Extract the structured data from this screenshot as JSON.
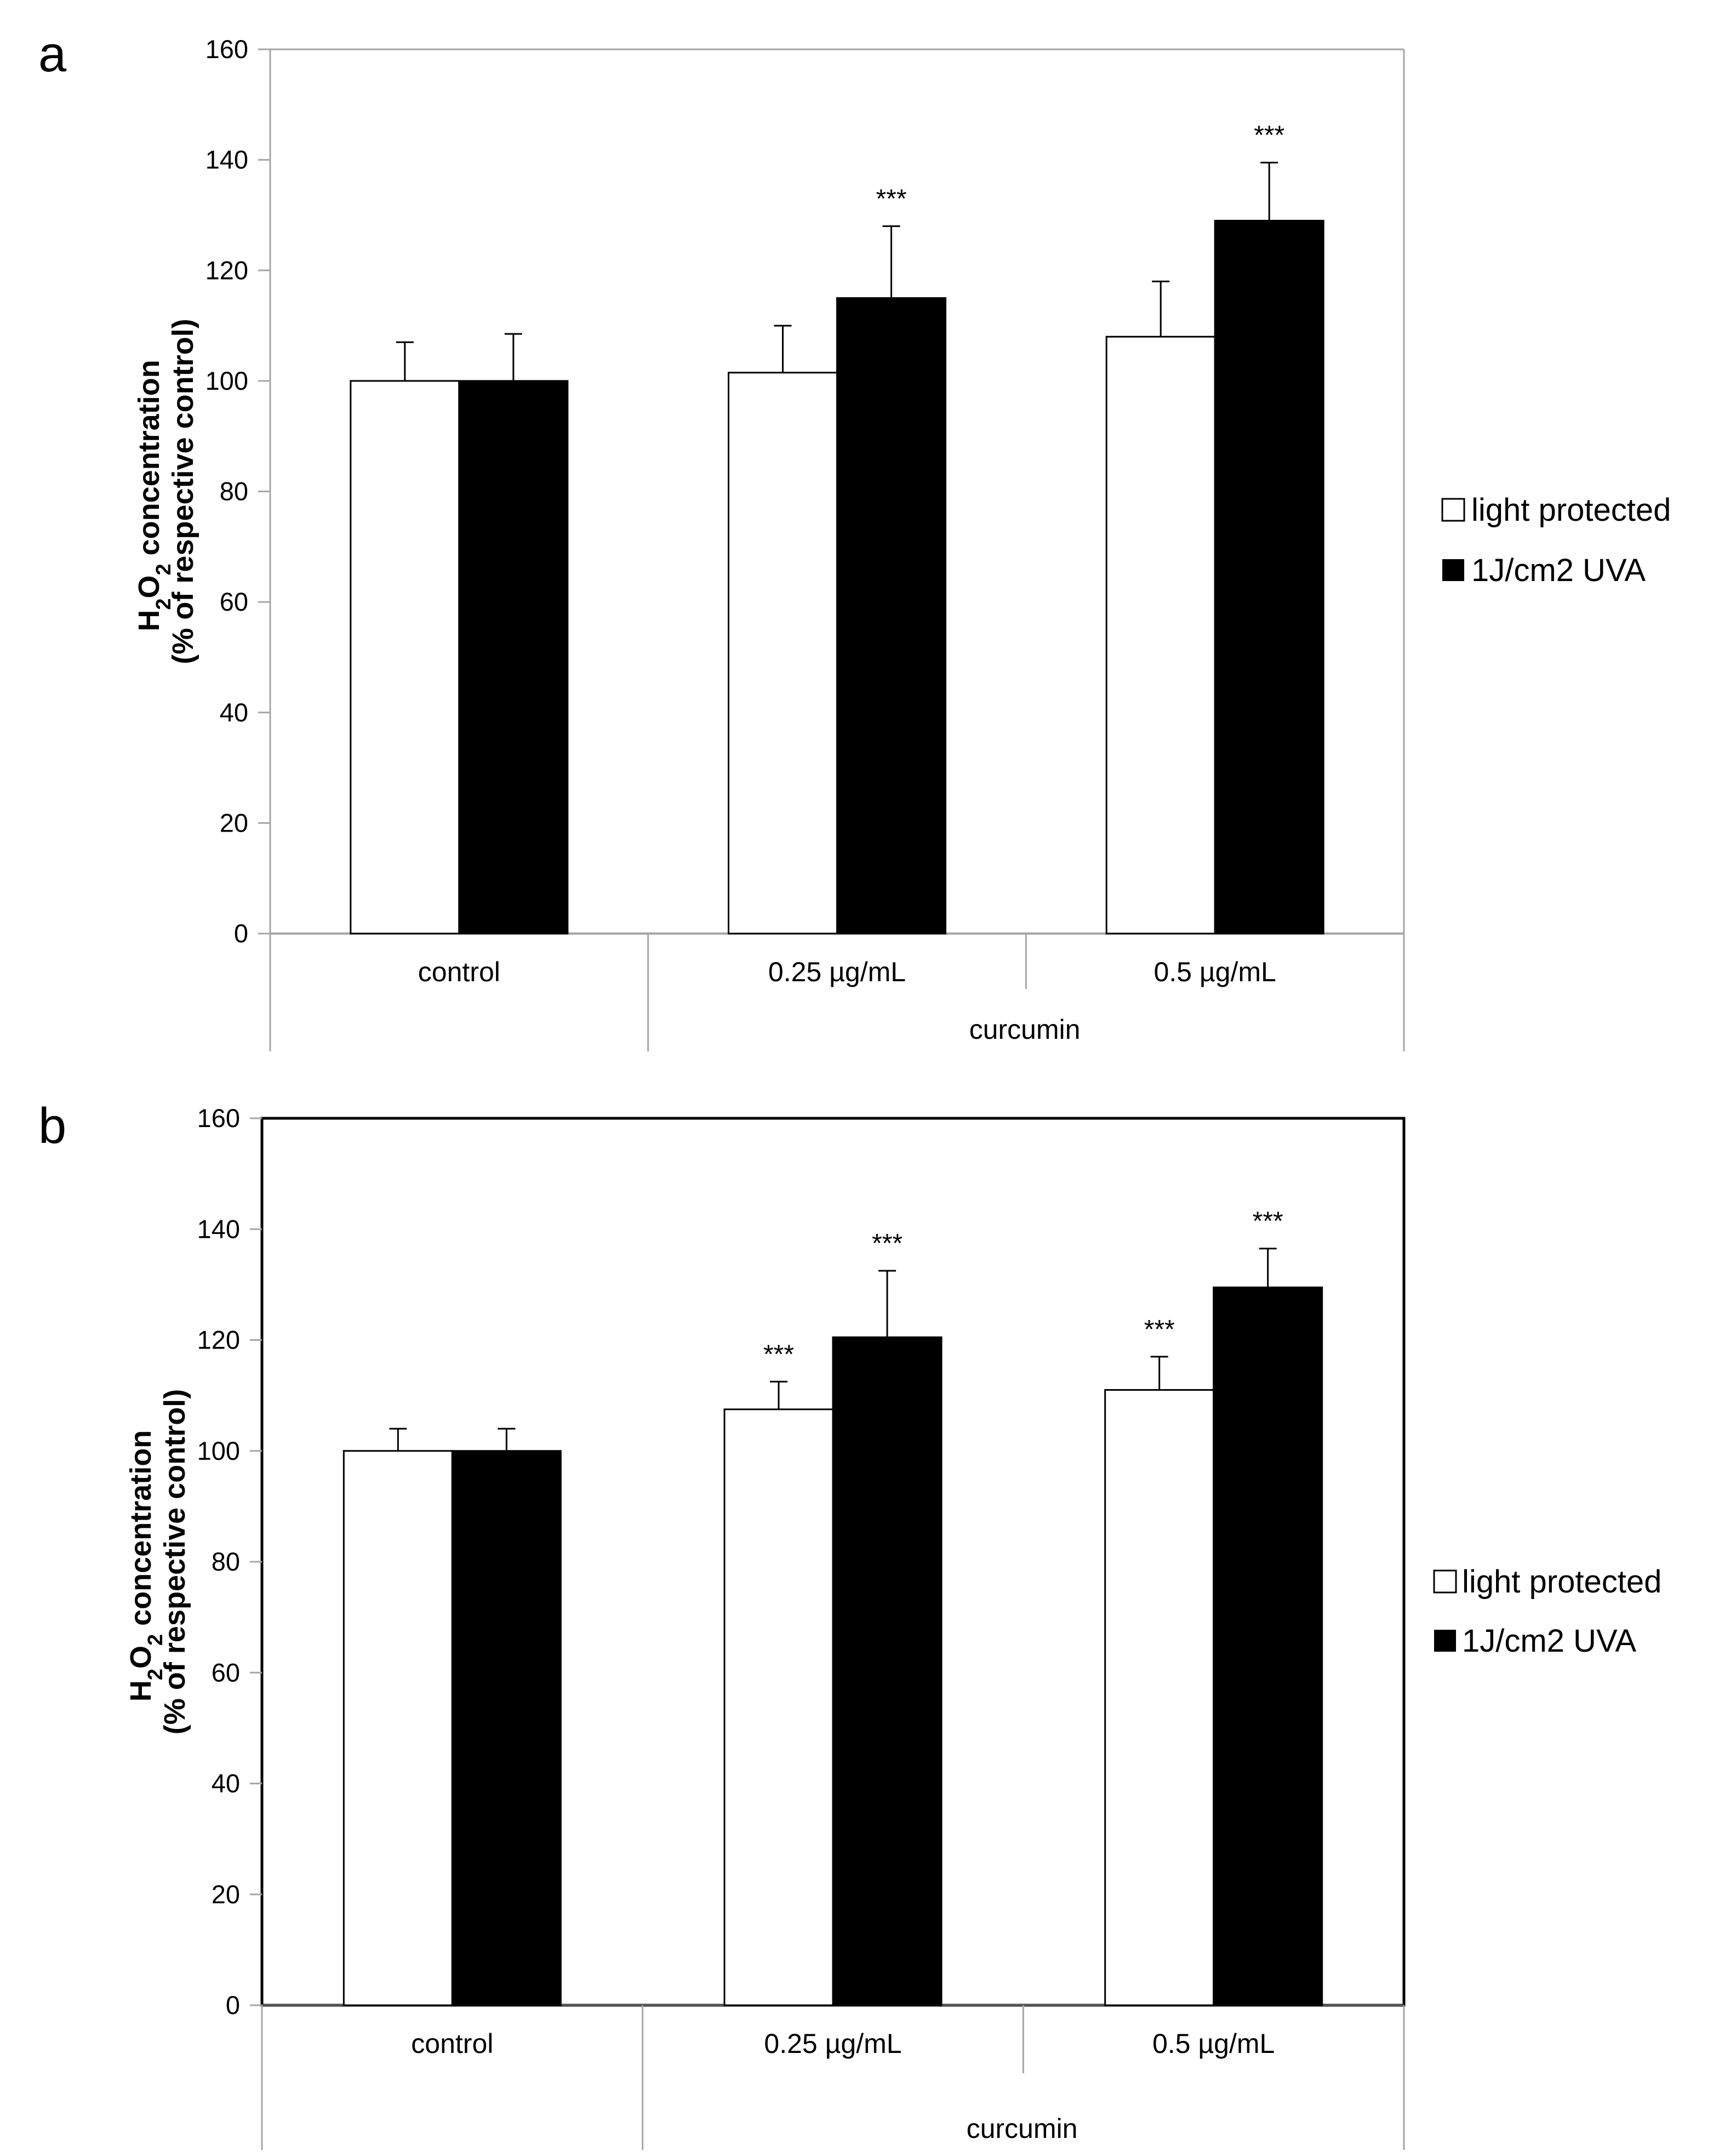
{
  "colors": {
    "light_protected": "#ffffff",
    "uva": "#000000",
    "axis": "#a6a6a6"
  },
  "chart_data": [
    {
      "panel": "a",
      "type": "bar",
      "ylabel": "H2O2 concentration (% of respective control)",
      "ylim": [
        0,
        160
      ],
      "yticks": [
        "0",
        "20",
        "40",
        "60",
        "80",
        "100",
        "120",
        "140",
        "160"
      ],
      "categories": [
        "control",
        "0.25 µg/mL",
        "0.5 µg/mL"
      ],
      "group_label": "curcumin",
      "legend": [
        "light protected",
        "1J/cm2 UVA"
      ],
      "series": [
        {
          "name": "light protected",
          "values": [
            100,
            101.5,
            108
          ],
          "errors": [
            7,
            8.5,
            10
          ],
          "sig": [
            "",
            "",
            ""
          ]
        },
        {
          "name": "1J/cm2 UVA",
          "values": [
            100,
            115,
            129
          ],
          "errors": [
            8.5,
            13,
            10.5
          ],
          "sig": [
            "",
            "***",
            "***"
          ]
        }
      ]
    },
    {
      "panel": "b",
      "type": "bar",
      "ylabel": "H2O2 concentration (% of respective control)",
      "ylim": [
        0,
        160
      ],
      "yticks": [
        "0",
        "20",
        "40",
        "60",
        "80",
        "100",
        "120",
        "140",
        "160"
      ],
      "categories": [
        "control",
        "0.25 µg/mL",
        "0.5 µg/mL"
      ],
      "group_label": "curcumin",
      "legend": [
        "light protected",
        "1J/cm2 UVA"
      ],
      "series": [
        {
          "name": "light protected",
          "values": [
            100,
            107.5,
            111
          ],
          "errors": [
            4,
            5,
            6
          ],
          "sig": [
            "",
            "***",
            "***"
          ]
        },
        {
          "name": "1J/cm2 UVA",
          "values": [
            100,
            120.5,
            129.5
          ],
          "errors": [
            4,
            12,
            7
          ],
          "sig": [
            "",
            "***",
            "***"
          ]
        }
      ]
    }
  ]
}
